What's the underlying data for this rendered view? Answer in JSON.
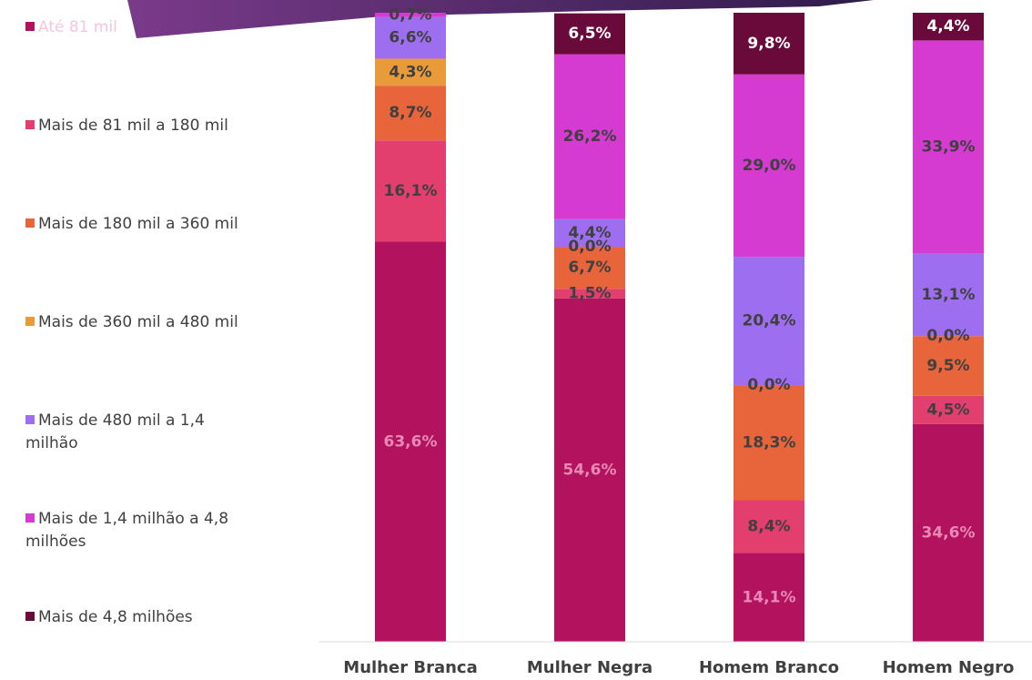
{
  "chart_data": {
    "type": "stacked_bar",
    "categories": [
      "Mulher Branca",
      "Mulher Negra",
      "Homem Branco",
      "Homem Negro"
    ],
    "ylim": [
      0,
      100
    ],
    "series": [
      {
        "name": "Até 81 mil",
        "color": "#b3125f",
        "label_color": "#e68ab5",
        "values": [
          63.6,
          54.6,
          14.1,
          34.6
        ],
        "value_labels": [
          "63,6%",
          "54,6%",
          "14,1%",
          "34,6%"
        ]
      },
      {
        "name": "Mais de 81 mil a 180 mil",
        "color": "#e23f6e",
        "label_color": "#404040",
        "values": [
          16.1,
          1.5,
          8.4,
          4.5
        ],
        "value_labels": [
          "16,1%",
          "1,5%",
          "8,4%",
          "4,5%"
        ]
      },
      {
        "name": "Mais de 180 mil a 360 mil",
        "color": "#e8643a",
        "label_color": "#404040",
        "values": [
          8.7,
          6.7,
          18.3,
          9.5
        ],
        "value_labels": [
          "8,7%",
          "6,7%",
          "18,3%",
          "9,5%"
        ]
      },
      {
        "name": "Mais de 360 mil a 480 mil",
        "color": "#e99a3a",
        "label_color": "#404040",
        "values": [
          4.3,
          0.0,
          0.0,
          0.0
        ],
        "value_labels": [
          "4,3%",
          "0,0%",
          "0,0%",
          "0,0%"
        ]
      },
      {
        "name": "Mais de 480 mil a 1,4 milhão",
        "color": "#9d6ff0",
        "label_color": "#404040",
        "values": [
          6.6,
          4.4,
          20.4,
          13.1
        ],
        "value_labels": [
          "6,6%",
          "4,4%",
          "20,4%",
          "13,1%"
        ]
      },
      {
        "name": "Mais de 1,4 milhão a 4,8 milhões",
        "color": "#d53bd1",
        "label_color": "#404040",
        "values": [
          0.7,
          26.2,
          29.0,
          33.9
        ],
        "value_labels": [
          "0,7%",
          "26,2%",
          "29,0%",
          "33,9%"
        ]
      },
      {
        "name": "Mais de 4,8 milhões",
        "color": "#6a0a3a",
        "label_color": "#ffffff",
        "values": [
          null,
          6.5,
          9.8,
          4.4
        ],
        "value_labels": [
          null,
          "6,5%",
          "9,8%",
          "4,4%"
        ]
      }
    ]
  }
}
